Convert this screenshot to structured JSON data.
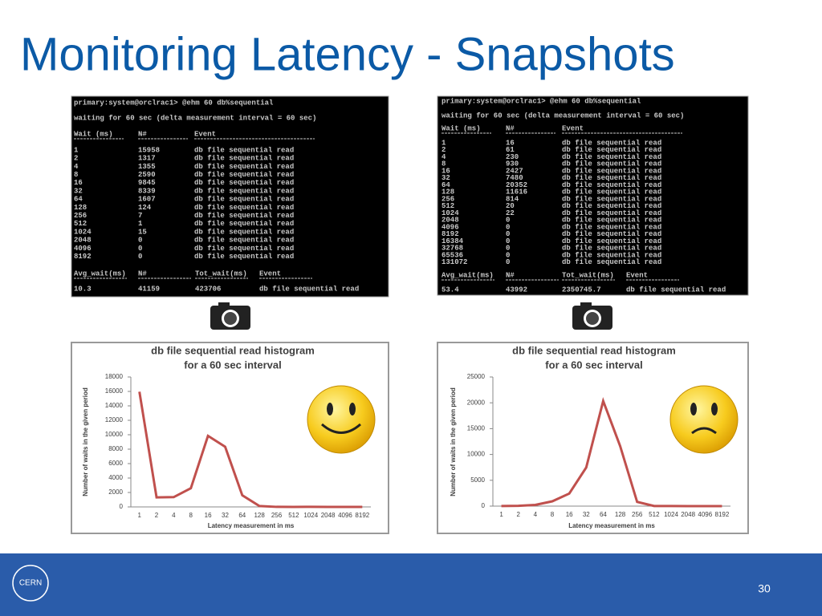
{
  "title": "Monitoring Latency - Snapshots",
  "terminals": [
    {
      "prompt": "primary:system@orclrac1> @ehm 60 db%sequential",
      "status": "waiting for 60 sec (delta measurement interval = 60 sec)",
      "headers": [
        "Wait (ms)",
        "N#",
        "Event"
      ],
      "rows": [
        [
          "1",
          "15958",
          "db file sequential read"
        ],
        [
          "2",
          "1317",
          "db file sequential read"
        ],
        [
          "4",
          "1355",
          "db file sequential read"
        ],
        [
          "8",
          "2590",
          "db file sequential read"
        ],
        [
          "16",
          "9845",
          "db file sequential read"
        ],
        [
          "32",
          "8339",
          "db file sequential read"
        ],
        [
          "64",
          "1607",
          "db file sequential read"
        ],
        [
          "128",
          "124",
          "db file sequential read"
        ],
        [
          "256",
          "7",
          "db file sequential read"
        ],
        [
          "512",
          "1",
          "db file sequential read"
        ],
        [
          "1024",
          "15",
          "db file sequential read"
        ],
        [
          "2048",
          "0",
          "db file sequential read"
        ],
        [
          "4096",
          "0",
          "db file sequential read"
        ],
        [
          "8192",
          "0",
          "db file sequential read"
        ]
      ],
      "summary_headers": [
        "Avg_wait(ms)",
        "N#",
        "Tot_wait(ms)",
        "Event"
      ],
      "summary_row": [
        "10.3",
        "41159",
        "423706",
        "db file sequential read"
      ]
    },
    {
      "prompt": "primary:system@orclrac1> @ehm 60 db%sequential",
      "status": "waiting for 60 sec (delta measurement interval = 60 sec)",
      "headers": [
        "Wait (ms)",
        "N#",
        "Event"
      ],
      "rows": [
        [
          "1",
          "16",
          "db file sequential read"
        ],
        [
          "2",
          "61",
          "db file sequential read"
        ],
        [
          "4",
          "230",
          "db file sequential read"
        ],
        [
          "8",
          "930",
          "db file sequential read"
        ],
        [
          "16",
          "2427",
          "db file sequential read"
        ],
        [
          "32",
          "7480",
          "db file sequential read"
        ],
        [
          "64",
          "20352",
          "db file sequential read"
        ],
        [
          "128",
          "11616",
          "db file sequential read"
        ],
        [
          "256",
          "814",
          "db file sequential read"
        ],
        [
          "512",
          "20",
          "db file sequential read"
        ],
        [
          "1024",
          "22",
          "db file sequential read"
        ],
        [
          "2048",
          "0",
          "db file sequential read"
        ],
        [
          "4096",
          "0",
          "db file sequential read"
        ],
        [
          "8192",
          "0",
          "db file sequential read"
        ],
        [
          "16384",
          "0",
          "db file sequential read"
        ],
        [
          "32768",
          "0",
          "db file sequential read"
        ],
        [
          "65536",
          "0",
          "db file sequential read"
        ],
        [
          "131072",
          "0",
          "db file sequential read"
        ]
      ],
      "summary_headers": [
        "Avg_wait(ms)",
        "N#",
        "Tot_wait(ms)",
        "Event"
      ],
      "summary_row": [
        "53.4",
        "43992",
        "2350745.7",
        "db file sequential read"
      ]
    }
  ],
  "chart_data": [
    {
      "type": "line",
      "title": "db file sequential read histogram",
      "subtitle": "for a 60 sec interval",
      "y_label": "Number of waits in the given period",
      "x_label": "Latency measurement in ms",
      "categories": [
        "1",
        "2",
        "4",
        "8",
        "16",
        "32",
        "64",
        "128",
        "256",
        "512",
        "1024",
        "2048",
        "4096",
        "8192"
      ],
      "values": [
        15958,
        1317,
        1355,
        2590,
        9845,
        8339,
        1607,
        124,
        7,
        1,
        15,
        0,
        0,
        0
      ],
      "color": "#c0504d",
      "ylim": [
        0,
        18000
      ],
      "yticks": [
        0,
        2000,
        4000,
        6000,
        8000,
        10000,
        12000,
        14000,
        16000,
        18000
      ]
    },
    {
      "type": "line",
      "title": "db file sequential read histogram",
      "subtitle": "for a 60 sec interval",
      "y_label": "Number of waits in the given period",
      "x_label": "Latency measurement in ms",
      "categories": [
        "1",
        "2",
        "4",
        "8",
        "16",
        "32",
        "64",
        "128",
        "256",
        "512",
        "1024",
        "2048",
        "4096",
        "8192"
      ],
      "values": [
        16,
        61,
        230,
        930,
        2427,
        7480,
        20352,
        11616,
        814,
        20,
        22,
        0,
        0,
        0
      ],
      "color": "#c0504d",
      "ylim": [
        0,
        25000
      ],
      "yticks": [
        0,
        5000,
        10000,
        15000,
        20000,
        25000
      ]
    }
  ],
  "logo": "CERN",
  "page_number": "30"
}
